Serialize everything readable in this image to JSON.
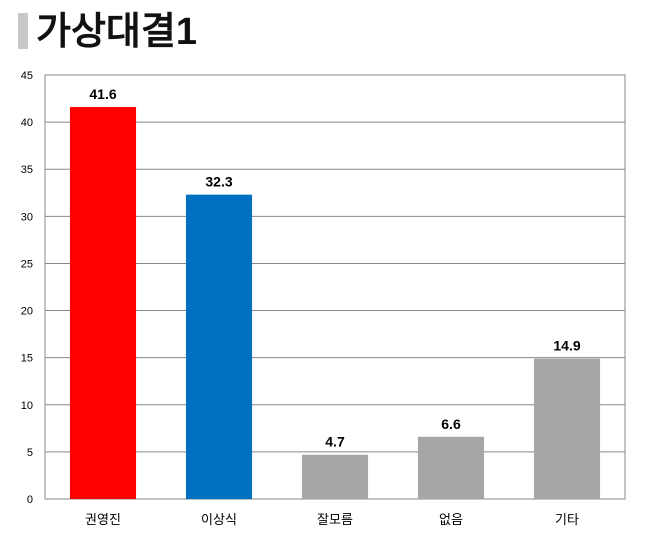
{
  "chart_data": {
    "type": "bar",
    "title": "가상대결1",
    "categories": [
      "권영진",
      "이상식",
      "잘모름",
      "없음",
      "기타"
    ],
    "values": [
      41.6,
      32.3,
      4.7,
      6.6,
      14.9
    ],
    "colors": [
      "#ff0000",
      "#0070c0",
      "#a6a6a6",
      "#a6a6a6",
      "#a6a6a6"
    ],
    "ylim": [
      0,
      45
    ],
    "yticks": [
      0,
      5,
      10,
      15,
      20,
      25,
      30,
      35,
      40,
      45
    ],
    "grid": true
  }
}
